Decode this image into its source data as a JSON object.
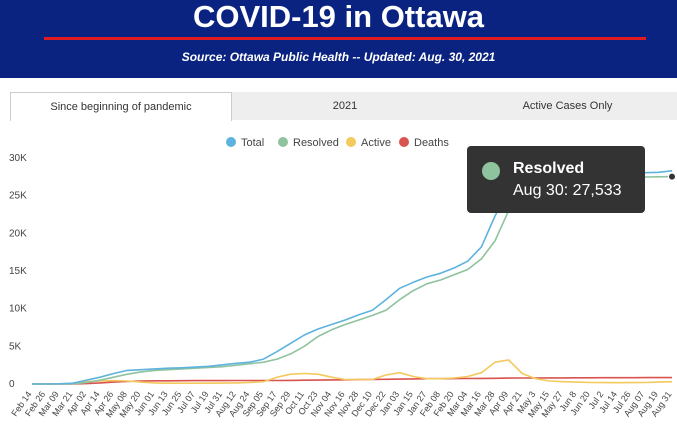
{
  "header": {
    "title": "COVID-19 in Ottawa",
    "source": "Source:  Ottawa Public Health -- Updated:  Aug. 30, 2021"
  },
  "tabs": [
    {
      "label": "Since beginning of pandemic",
      "active": true
    },
    {
      "label": "2021",
      "active": false
    },
    {
      "label": "Active Cases Only",
      "active": false
    }
  ],
  "tooltip": {
    "series": "Resolved",
    "value": "Aug 30: 27,533"
  },
  "chart_data": {
    "type": "line",
    "ylim": [
      0,
      30000
    ],
    "yticks": [
      0,
      5000,
      10000,
      15000,
      20000,
      25000,
      30000
    ],
    "ytick_labels": [
      "0",
      "5K",
      "10K",
      "15K",
      "20K",
      "25K",
      "30K"
    ],
    "legend_position": "top-center",
    "grid": false,
    "xtick_labels": [
      "Feb 14",
      "Feb 26",
      "Mar 09",
      "Mar 21",
      "Apr 02",
      "Apr 14",
      "Apr 26",
      "May 08",
      "May 20",
      "Jun 01",
      "Jun 13",
      "Jun 25",
      "Jul 07",
      "Jul 19",
      "Jul 31",
      "Aug 12",
      "Aug 24",
      "Sep 05",
      "Sep 17",
      "Sep 29",
      "Oct 11",
      "Oct 23",
      "Nov 04",
      "Nov 16",
      "Nov 28",
      "Dec 10",
      "Dec 22",
      "Jan 03",
      "Jan 15",
      "Jan 27",
      "Feb 08",
      "Feb 20",
      "Mar 04",
      "Mar 16",
      "Mar 28",
      "Apr 09",
      "Apr 21",
      "May 3",
      "May 15",
      "May 27",
      "Jun 8",
      "Jun 20",
      "Jul 2",
      "Jul 14",
      "Jul 26",
      "Aug 07",
      "Aug 19",
      "Aug 31"
    ],
    "series": [
      {
        "name": "Total",
        "color": "#5db3de",
        "values": [
          0,
          0,
          20,
          100,
          500,
          900,
          1400,
          1800,
          1900,
          2000,
          2100,
          2150,
          2250,
          2350,
          2550,
          2750,
          2900,
          3300,
          4300,
          5400,
          6500,
          7300,
          7900,
          8500,
          9200,
          9800,
          11200,
          12700,
          13500,
          14200,
          14700,
          15400,
          16300,
          18200,
          22300,
          25600,
          26800,
          27300,
          27500,
          27700,
          27800,
          27850,
          27900,
          27950,
          28000,
          28050,
          28100,
          28300
        ]
      },
      {
        "name": "Resolved",
        "color": "#8fc29f",
        "values": [
          0,
          0,
          0,
          30,
          200,
          500,
          900,
          1300,
          1600,
          1800,
          1900,
          2000,
          2100,
          2200,
          2300,
          2500,
          2700,
          2900,
          3300,
          4000,
          5000,
          6300,
          7200,
          7900,
          8500,
          9100,
          9800,
          11200,
          12400,
          13300,
          13800,
          14500,
          15200,
          16600,
          19000,
          23000,
          25700,
          26800,
          27200,
          27300,
          27350,
          27400,
          27420,
          27440,
          27460,
          27480,
          27500,
          27533
        ]
      },
      {
        "name": "Active",
        "color": "#f4c95d",
        "values": [
          0,
          0,
          20,
          70,
          300,
          400,
          450,
          400,
          250,
          150,
          100,
          100,
          100,
          100,
          120,
          150,
          200,
          300,
          900,
          1300,
          1400,
          1300,
          900,
          600,
          600,
          600,
          1200,
          1500,
          1000,
          700,
          700,
          800,
          1000,
          1500,
          2900,
          3200,
          1400,
          700,
          400,
          300,
          250,
          200,
          180,
          170,
          180,
          200,
          250,
          300
        ]
      },
      {
        "name": "Deaths",
        "color": "#d9534f",
        "values": [
          0,
          0,
          0,
          0,
          50,
          150,
          250,
          350,
          400,
          420,
          430,
          440,
          450,
          450,
          450,
          460,
          460,
          460,
          470,
          480,
          500,
          520,
          540,
          560,
          580,
          600,
          620,
          650,
          680,
          700,
          710,
          720,
          730,
          740,
          760,
          780,
          790,
          800,
          810,
          815,
          820,
          825,
          830,
          835,
          840,
          845,
          850,
          855
        ]
      }
    ]
  }
}
